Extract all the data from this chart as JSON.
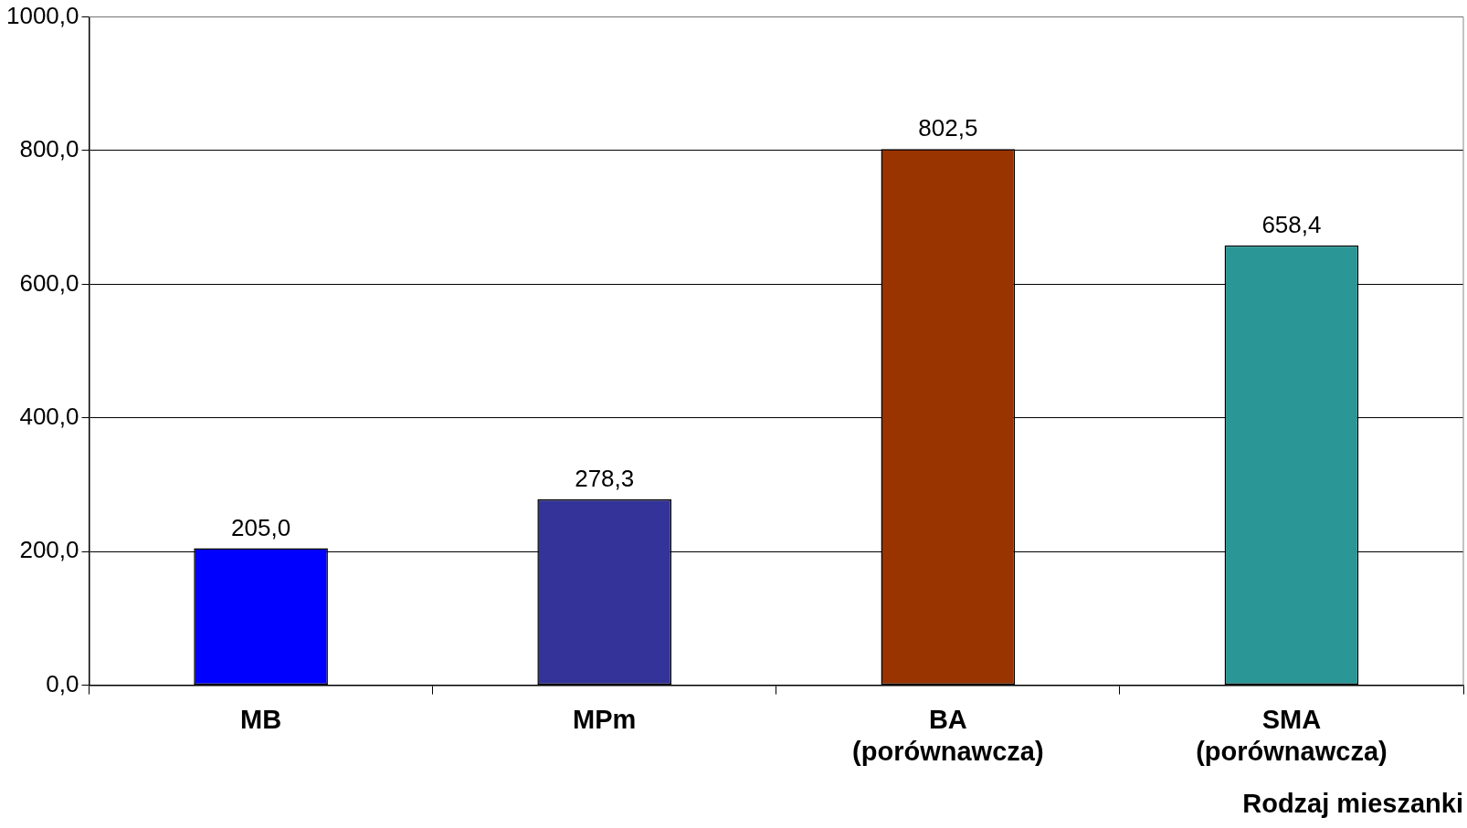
{
  "chart_data": {
    "type": "bar",
    "xlabel": "Rodzaj mieszanki",
    "categories": [
      "MB",
      "MPm",
      "BA (porównawcza)",
      "SMA (porównawcza)"
    ],
    "values": [
      205.0,
      278.3,
      802.5,
      658.4
    ],
    "colors": [
      "#0000ff",
      "#333399",
      "#993300",
      "#2a9696"
    ],
    "value_labels": [
      "205,0",
      "278,3",
      "802,5",
      "658,4"
    ],
    "ylim": [
      0,
      1000
    ],
    "yticks": [
      {
        "value": 0,
        "label": "0,0"
      },
      {
        "value": 200,
        "label": "200,0"
      },
      {
        "value": 400,
        "label": "400,0"
      },
      {
        "value": 600,
        "label": "600,0"
      },
      {
        "value": 800,
        "label": "800,0"
      },
      {
        "value": 1000,
        "label": "1000,0"
      }
    ],
    "grid": "y",
    "legend": false
  }
}
